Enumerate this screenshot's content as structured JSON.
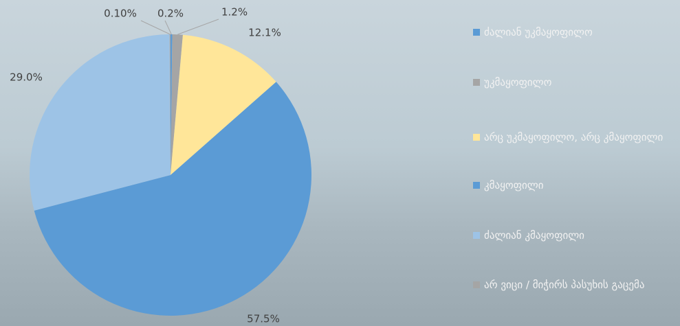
{
  "chart_data": {
    "type": "pie",
    "categories": [
      "ძალიან უკმაყოფილო",
      "უკმაყოფილო",
      "არც უკმაყოფილო, არც კმაყოფილი",
      "კმაყოფილი",
      "ძალიან კმაყოფილი",
      "არ ვიცი / მიჭირს პასუხის გაცემა"
    ],
    "values": [
      0.2,
      1.2,
      12.1,
      57.5,
      29.0,
      0.1
    ],
    "value_labels": [
      "0.2%",
      "1.2%",
      "12.1%",
      "57.5%",
      "29.0%",
      "0.10%"
    ],
    "colors": [
      "#5b9bd5",
      "#a5a5a5",
      "#ffe699",
      "#5b9bd5",
      "#9dc3e6",
      "#a5a5a5"
    ],
    "legend": "right"
  }
}
